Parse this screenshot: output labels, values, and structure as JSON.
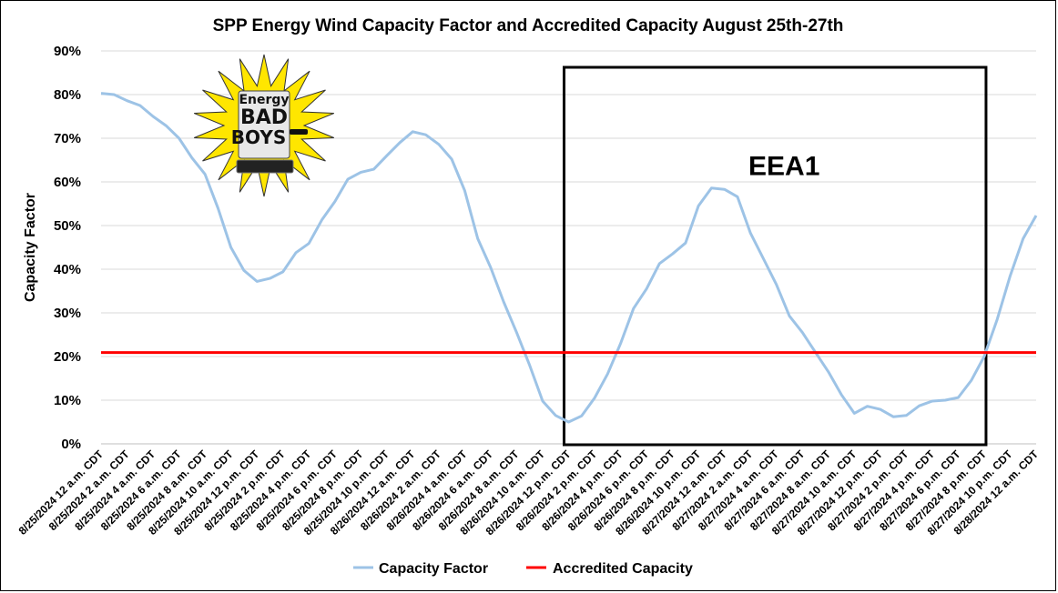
{
  "chart_data": {
    "type": "line",
    "title": "SPP Energy Wind Capacity Factor and Accredited Capacity August 25th-27th",
    "ylabel": "Capacity Factor",
    "xlabel": "",
    "ylim": [
      0,
      90
    ],
    "yticks": [
      "0%",
      "10%",
      "20%",
      "30%",
      "40%",
      "50%",
      "60%",
      "70%",
      "80%",
      "90%"
    ],
    "x_tick_labels": [
      "8/25/2024 12 a.m. CDT",
      "8/25/2024 2 a.m. CDT",
      "8/25/2024 4 a.m. CDT",
      "8/25/2024 6 a.m. CDT",
      "8/25/2024 8 a.m. CDT",
      "8/25/2024 10 a.m. CDT",
      "8/25/2024 12 p.m. CDT",
      "8/25/2024 2 p.m. CDT",
      "8/25/2024 4 p.m. CDT",
      "8/25/2024 6 p.m. CDT",
      "8/25/2024 8 p.m. CDT",
      "8/25/2024 10 p.m. CDT",
      "8/26/2024 12 a.m. CDT",
      "8/26/2024 2 a.m. CDT",
      "8/26/2024 4 a.m. CDT",
      "8/26/2024 6 a.m. CDT",
      "8/26/2024 8 a.m. CDT",
      "8/26/2024 10 a.m. CDT",
      "8/26/2024 12 p.m. CDT",
      "8/26/2024 2 p.m. CDT",
      "8/26/2024 4 p.m. CDT",
      "8/26/2024 6 p.m. CDT",
      "8/26/2024 8 p.m. CDT",
      "8/26/2024 10 p.m. CDT",
      "8/27/2024 12 a.m. CDT",
      "8/27/2024 2 a.m. CDT",
      "8/27/2024 4 a.m. CDT",
      "8/27/2024 6 a.m. CDT",
      "8/27/2024 8 a.m. CDT",
      "8/27/2024 10 a.m. CDT",
      "8/27/2024 12 p.m. CDT",
      "8/27/2024 2 p.m. CDT",
      "8/27/2024 4 p.m. CDT",
      "8/27/2024 6 p.m. CDT",
      "8/27/2024 8 p.m. CDT",
      "8/27/2024 10 p.m. CDT",
      "8/28/2024 12 a.m. CDT"
    ],
    "series": [
      {
        "name": "Capacity Factor",
        "color": "#9DC3E6",
        "values": [
          80.3,
          80.0,
          78.6,
          77.5,
          75.0,
          72.9,
          70.0,
          65.5,
          61.8,
          54.0,
          45.0,
          39.7,
          37.2,
          37.9,
          39.4,
          43.8,
          45.9,
          51.3,
          55.5,
          60.6,
          62.2,
          62.9,
          66.0,
          69.0,
          71.5,
          70.8,
          68.6,
          65.2,
          58.0,
          47.0,
          40.4,
          32.5,
          25.5,
          18.0,
          9.8,
          6.5,
          5.0,
          6.4,
          10.5,
          16.0,
          23.0,
          31.0,
          35.5,
          41.3,
          43.5,
          46.0,
          54.5,
          58.6,
          58.3,
          56.6,
          48.3,
          42.4,
          36.5,
          29.3,
          25.5,
          21.0,
          16.5,
          11.3,
          7.0,
          8.6,
          7.9,
          6.2,
          6.5,
          8.7,
          9.8,
          10.0,
          10.6,
          14.5,
          20.0,
          28.5,
          38.5,
          47.0,
          52.3
        ]
      },
      {
        "name": "Accredited Capacity",
        "color": "#FF0000",
        "constant": 20.9
      }
    ],
    "legend": {
      "position": "bottom",
      "entries": [
        "Capacity Factor",
        "Accredited Capacity"
      ]
    },
    "annotations": [
      {
        "text": "EEA1",
        "x_start_index": 36,
        "x_end_index": 68
      }
    ]
  },
  "logo": {
    "line1": "Energy",
    "line2": "BAD",
    "line3": "BOYS",
    "colors": {
      "burst": "#FFE600",
      "text": "#111111"
    }
  }
}
